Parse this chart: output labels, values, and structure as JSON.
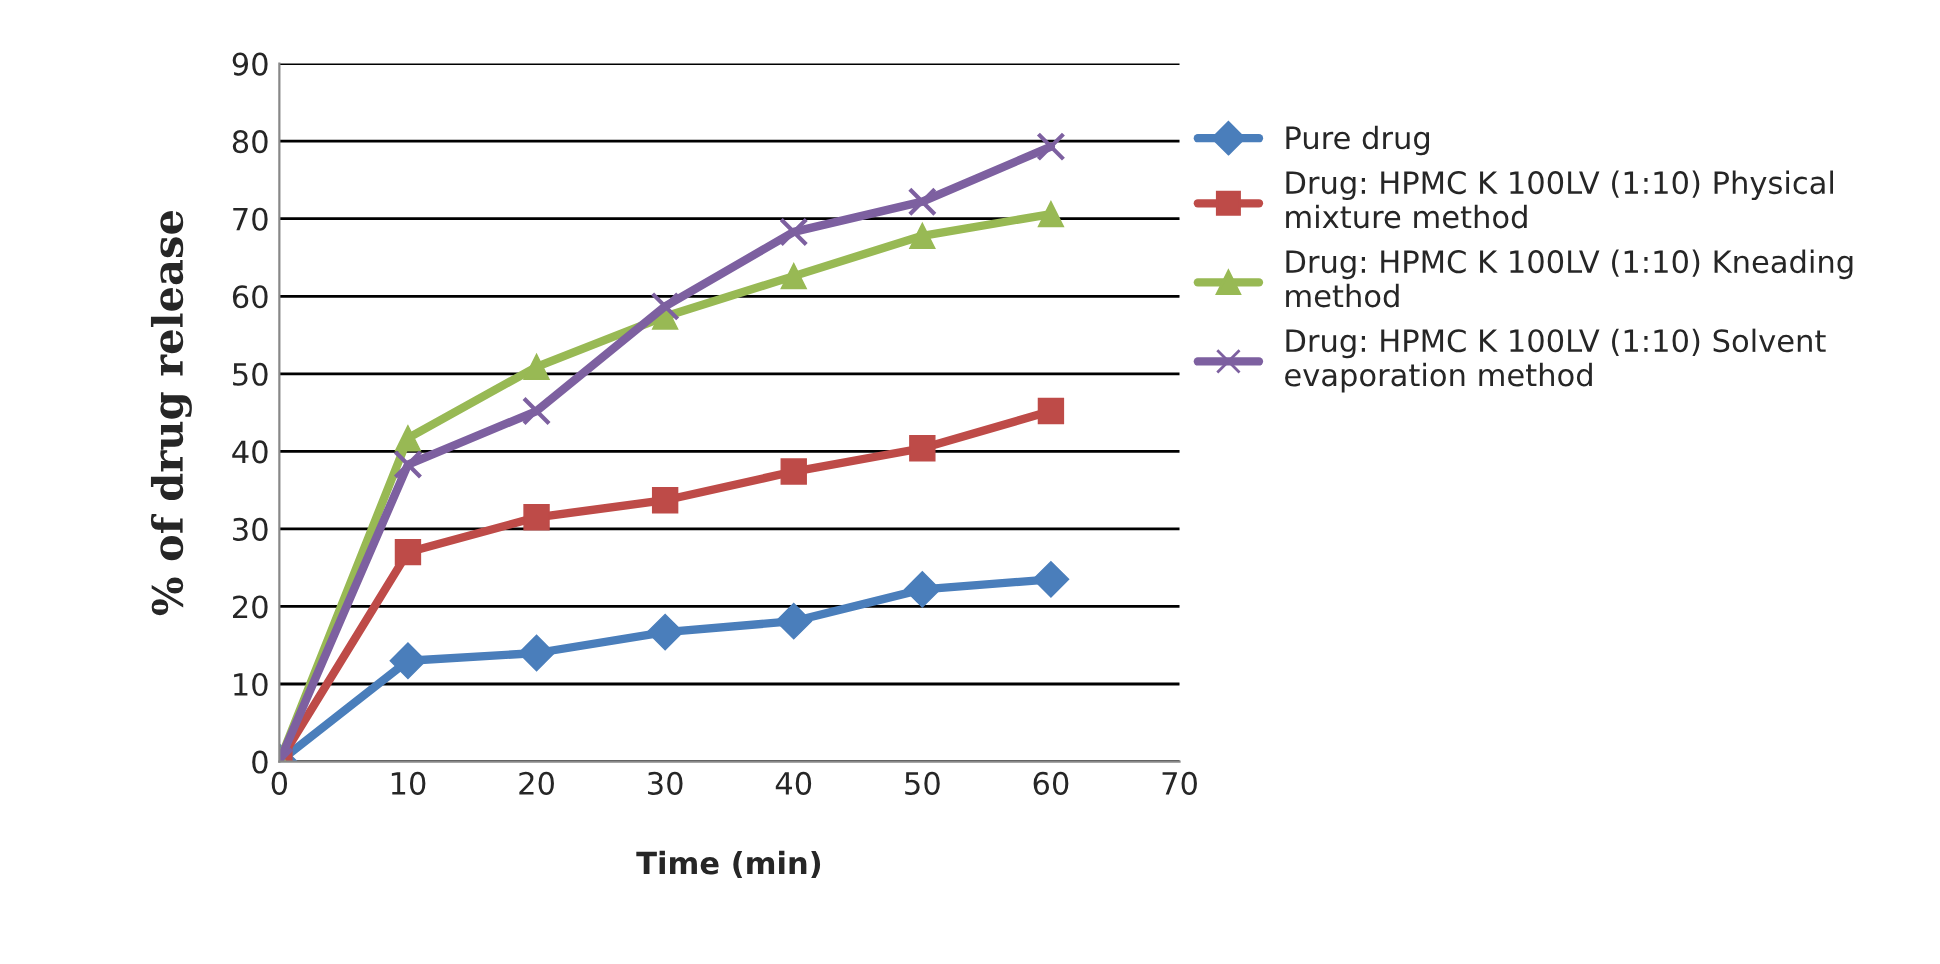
{
  "chart_data": {
    "type": "line",
    "xlabel": "Time (min)",
    "ylabel": "% of drug release",
    "x": [
      0,
      10,
      20,
      30,
      40,
      50,
      60
    ],
    "series": [
      {
        "name": "Pure drug",
        "color": "#4a7ebb",
        "marker": "diamond",
        "values": [
          0,
          13,
          14,
          16.7,
          18.1,
          22.2,
          23.5
        ]
      },
      {
        "name": "Drug: HPMC K 100LV (1:10) Physical mixture method",
        "color": "#be4b48",
        "marker": "square",
        "values": [
          0,
          27,
          31.5,
          33.7,
          37.4,
          40.4,
          45.2
        ]
      },
      {
        "name": "Drug: HPMC K 100LV (1:10) Kneading method",
        "color": "#98b954",
        "marker": "triangle",
        "values": [
          0,
          41.7,
          50.9,
          57.4,
          62.6,
          67.8,
          70.6
        ]
      },
      {
        "name": "Drug: HPMC K 100LV (1:10) Solvent evaporation method",
        "color": "#7d60a0",
        "marker": "cross",
        "values": [
          0,
          38.3,
          45.2,
          58.7,
          68.3,
          72.2,
          79.3
        ]
      }
    ],
    "xlim": [
      0,
      70
    ],
    "xticks": [
      0,
      10,
      20,
      30,
      40,
      50,
      60,
      70
    ],
    "ylim": [
      0,
      90
    ],
    "yticks": [
      0,
      10,
      20,
      30,
      40,
      50,
      60,
      70,
      80,
      90
    ],
    "grid": "y",
    "legend": "right",
    "line_style": "solid"
  }
}
